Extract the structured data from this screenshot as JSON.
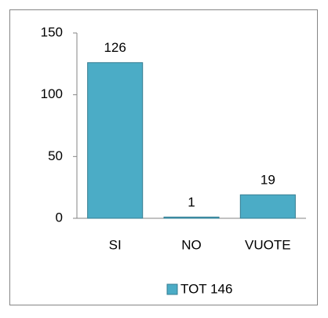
{
  "chart_data": {
    "type": "bar",
    "categories": [
      "SI",
      "NO",
      "VUOTE"
    ],
    "series": [
      {
        "name": "TOT 146",
        "color": "#4bacc6",
        "values": [
          126,
          1,
          19
        ]
      }
    ],
    "ylim": [
      0,
      150
    ],
    "yticks": [
      0,
      50,
      100,
      150
    ],
    "grid": false,
    "legend": "bottom"
  }
}
